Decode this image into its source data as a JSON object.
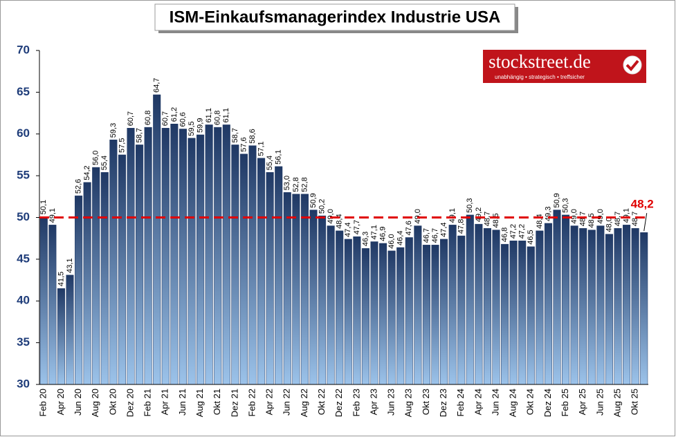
{
  "chart_data": {
    "type": "bar",
    "title": "ISM-Einkaufsmanagerindex Industrie USA",
    "logo": {
      "name": "stockstreet.de",
      "tagline": "unabhängig • strategisch • treffsicher"
    },
    "categories": [
      "Feb 20",
      null,
      "Apr 20",
      null,
      "Jun 20",
      null,
      "Aug 20",
      null,
      "Okt 20",
      null,
      "Dez 20",
      null,
      "Feb 21",
      null,
      "Apr 21",
      null,
      "Jun 21",
      null,
      "Aug 21",
      null,
      "Okt 21",
      null,
      "Dez 21",
      null,
      "Feb 22",
      null,
      "Apr 22",
      null,
      "Jun 22",
      null,
      "Aug 22",
      null,
      "Okt 22",
      null,
      "Dez 22",
      null,
      "Feb 23",
      null,
      "Apr 23",
      null,
      "Jun 23",
      null,
      "Aug 23",
      null,
      "Okt 23",
      null,
      "Dez 23",
      null,
      "Feb 24",
      null,
      "Apr 24",
      null,
      "Jun 24",
      null,
      "Aug 24",
      null,
      "Okt 24",
      null,
      "Dez 24",
      null,
      "Feb 25",
      null,
      "Apr 25",
      null,
      "Jun 25",
      null,
      "Aug 25",
      null,
      "Okt 25",
      null
    ],
    "values": [
      50.1,
      49.1,
      41.5,
      43.1,
      52.6,
      54.2,
      56.0,
      55.4,
      59.3,
      57.5,
      60.7,
      58.7,
      60.8,
      64.7,
      60.7,
      61.2,
      60.6,
      59.5,
      59.9,
      61.1,
      60.8,
      61.1,
      58.7,
      57.6,
      58.6,
      57.1,
      55.4,
      56.1,
      53.0,
      52.8,
      52.8,
      50.9,
      50.2,
      49.0,
      48.4,
      47.4,
      47.7,
      46.3,
      47.1,
      46.9,
      46.0,
      46.4,
      47.6,
      49.0,
      46.7,
      46.7,
      47.4,
      49.1,
      47.8,
      50.3,
      49.2,
      48.7,
      48.5,
      46.8,
      47.2,
      47.2,
      46.5,
      48.4,
      49.3,
      50.9,
      50.3,
      49.0,
      48.7,
      48.5,
      49.0,
      48.0,
      48.7,
      49.1,
      48.7,
      48.2
    ],
    "value_labels": [
      "50,1",
      "49,1",
      "41,5",
      "43,1",
      "52,6",
      "54,2",
      "56,0",
      "55,4",
      "59,3",
      "57,5",
      "60,7",
      "58,7",
      "60,8",
      "64,7",
      "60,7",
      "61,2",
      "60,6",
      "59,5",
      "59,9",
      "61,1",
      "60,8",
      "61,1",
      "58,7",
      "57,6",
      "58,6",
      "57,1",
      "55,4",
      "56,1",
      "53,0",
      "52,8",
      "52,8",
      "50,9",
      "50,2",
      "49,0",
      "48,4",
      "47,4",
      "47,7",
      "46,3",
      "47,1",
      "46,9",
      "46,0",
      "46,4",
      "47,6",
      "49,0",
      "46,7",
      "46,7",
      "47,4",
      "49,1",
      "47,8",
      "50,3",
      "49,2",
      "48,7",
      "48,5",
      "46,8",
      "47,2",
      "47,2",
      "46,5",
      "48,4",
      "49,3",
      "50,9",
      "50,3",
      "49,0",
      "48,7",
      "48,5",
      "49,0",
      "48,0",
      "48,7",
      "49,1",
      "48,7",
      "48,2"
    ],
    "color": "#1f3864",
    "highlight_color": "#e00000",
    "reference_line": 50,
    "ylim": [
      30,
      70
    ],
    "yticks": [
      30,
      35,
      40,
      45,
      50,
      55,
      60,
      65,
      70
    ]
  }
}
